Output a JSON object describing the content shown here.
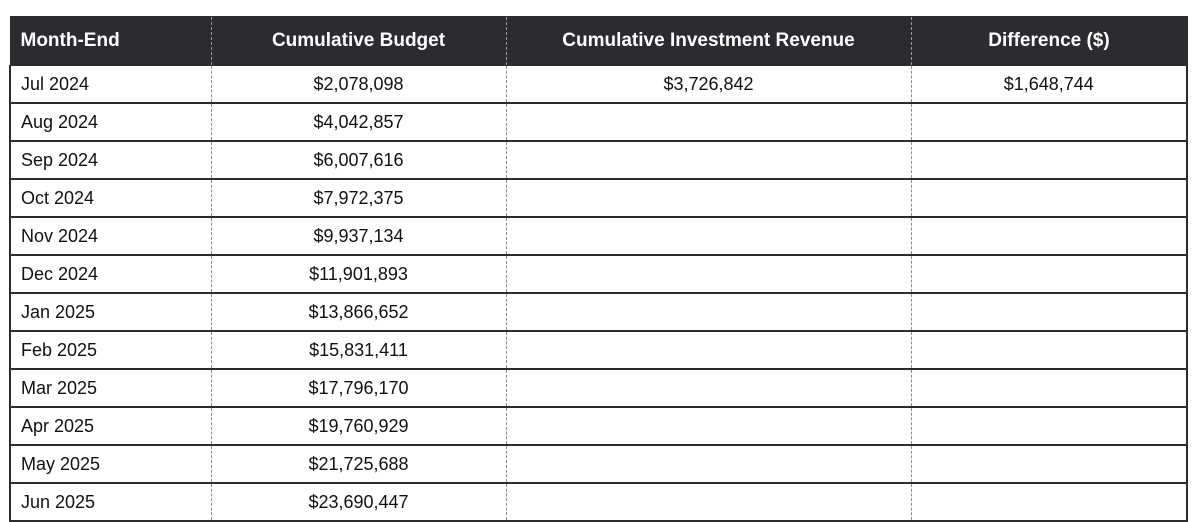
{
  "table": {
    "headers": [
      "Month-End",
      "Cumulative Budget",
      "Cumulative Investment Revenue",
      "Difference ($)"
    ],
    "rows": [
      {
        "month": "Jul 2024",
        "budget": "$2,078,098",
        "revenue": "$3,726,842",
        "difference": "$1,648,744"
      },
      {
        "month": "Aug 2024",
        "budget": "$4,042,857",
        "revenue": "",
        "difference": ""
      },
      {
        "month": "Sep 2024",
        "budget": "$6,007,616",
        "revenue": "",
        "difference": ""
      },
      {
        "month": "Oct 2024",
        "budget": "$7,972,375",
        "revenue": "",
        "difference": ""
      },
      {
        "month": "Nov 2024",
        "budget": "$9,937,134",
        "revenue": "",
        "difference": ""
      },
      {
        "month": "Dec 2024",
        "budget": "$11,901,893",
        "revenue": "",
        "difference": ""
      },
      {
        "month": "Jan 2025",
        "budget": "$13,866,652",
        "revenue": "",
        "difference": ""
      },
      {
        "month": "Feb 2025",
        "budget": "$15,831,411",
        "revenue": "",
        "difference": ""
      },
      {
        "month": "Mar 2025",
        "budget": "$17,796,170",
        "revenue": "",
        "difference": ""
      },
      {
        "month": "Apr 2025",
        "budget": "$19,760,929",
        "revenue": "",
        "difference": ""
      },
      {
        "month": "May 2025",
        "budget": "$21,725,688",
        "revenue": "",
        "difference": ""
      },
      {
        "month": "Jun 2025",
        "budget": "$23,690,447",
        "revenue": "",
        "difference": ""
      }
    ]
  }
}
